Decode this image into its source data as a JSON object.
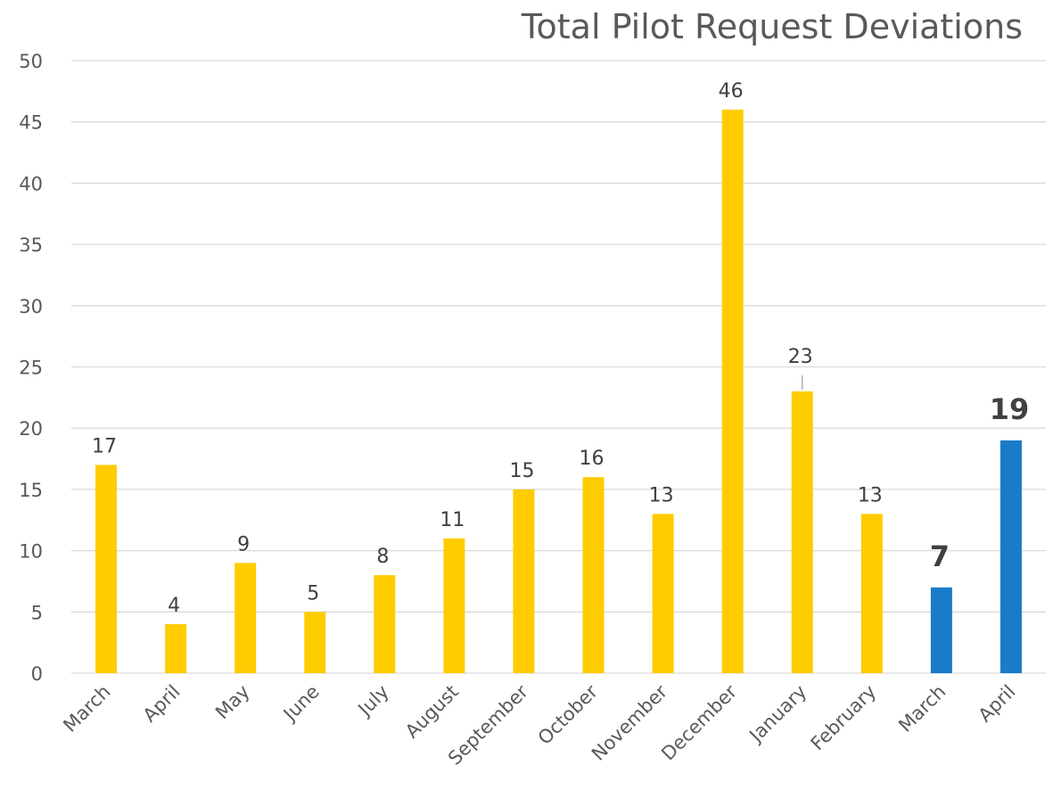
{
  "chart_data": {
    "type": "bar",
    "title": "Total Pilot Request Deviations",
    "xlabel": "",
    "ylabel": "",
    "ylim": [
      0,
      50
    ],
    "yticks": [
      0,
      5,
      10,
      15,
      20,
      25,
      30,
      35,
      40,
      45,
      50
    ],
    "grid": true,
    "legend": "none",
    "categories": [
      "March",
      "April",
      "May",
      "June",
      "July",
      "August",
      "September",
      "October",
      "November",
      "December",
      "January",
      "February",
      "March",
      "April"
    ],
    "values": [
      17,
      4,
      9,
      5,
      8,
      11,
      15,
      16,
      13,
      46,
      23,
      13,
      7,
      19
    ],
    "bar_colors": [
      "#ffcc00",
      "#ffcc00",
      "#ffcc00",
      "#ffcc00",
      "#ffcc00",
      "#ffcc00",
      "#ffcc00",
      "#ffcc00",
      "#ffcc00",
      "#ffcc00",
      "#ffcc00",
      "#ffcc00",
      "#1a7cc9",
      "#1a7cc9"
    ],
    "bold_labels": [
      false,
      false,
      false,
      false,
      false,
      false,
      false,
      false,
      false,
      false,
      false,
      false,
      true,
      true
    ]
  }
}
